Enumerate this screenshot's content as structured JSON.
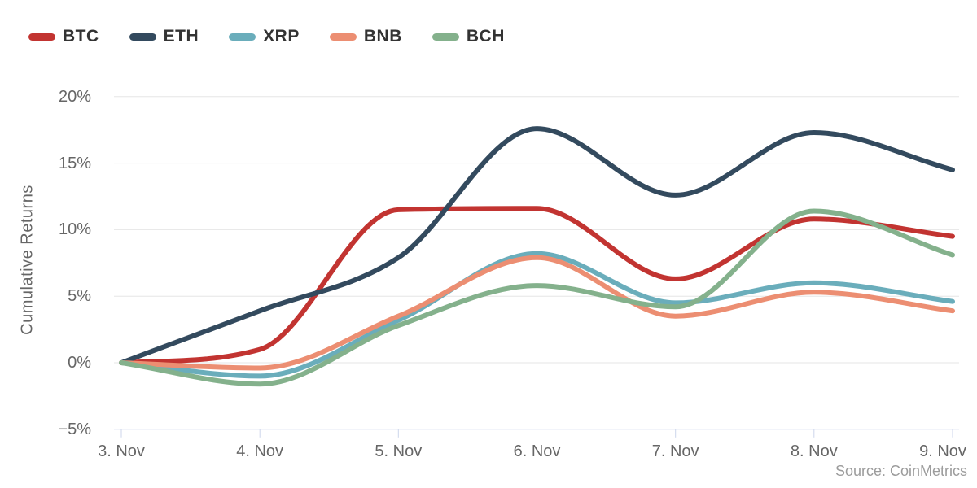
{
  "chart_data": {
    "type": "line",
    "title": "",
    "xlabel": "",
    "ylabel": "Cumulative Returns",
    "categories": [
      "3. Nov",
      "4. Nov",
      "5. Nov",
      "6. Nov",
      "7. Nov",
      "8. Nov",
      "9. Nov"
    ],
    "series": [
      {
        "name": "BTC",
        "color": "#c23431",
        "values": [
          0,
          1.0,
          11.5,
          11.6,
          6.3,
          10.8,
          9.5
        ]
      },
      {
        "name": "ETH",
        "color": "#334a5e",
        "values": [
          0,
          3.9,
          7.9,
          17.6,
          12.6,
          17.3,
          14.5
        ]
      },
      {
        "name": "XRP",
        "color": "#6aadbb",
        "values": [
          0,
          -1.0,
          3.2,
          8.2,
          4.5,
          6.0,
          4.6
        ]
      },
      {
        "name": "BNB",
        "color": "#ec8e72",
        "values": [
          0,
          -0.4,
          3.5,
          7.9,
          3.5,
          5.3,
          3.9
        ]
      },
      {
        "name": "BCH",
        "color": "#84b18c",
        "values": [
          0,
          -1.6,
          2.8,
          5.8,
          4.2,
          11.4,
          8.1
        ]
      }
    ],
    "y_ticks": [
      {
        "value": 20,
        "label": "20%"
      },
      {
        "value": 15,
        "label": "15%"
      },
      {
        "value": 10,
        "label": "10%"
      },
      {
        "value": 5,
        "label": "5%"
      },
      {
        "value": 0,
        "label": "0%"
      },
      {
        "value": -5,
        "label": "−5%"
      }
    ],
    "ylim": [
      -5,
      20
    ],
    "grid": true,
    "legend_position": "top-left",
    "source": "Source: CoinMetrics"
  },
  "styles": {
    "background": "#ffffff",
    "grid_color": "#e6e6e6",
    "axis_color": "#ccd6eb",
    "axis_label_color": "#666666",
    "legend_text_color": "#333333",
    "source_text_color": "#9c9c9c"
  }
}
